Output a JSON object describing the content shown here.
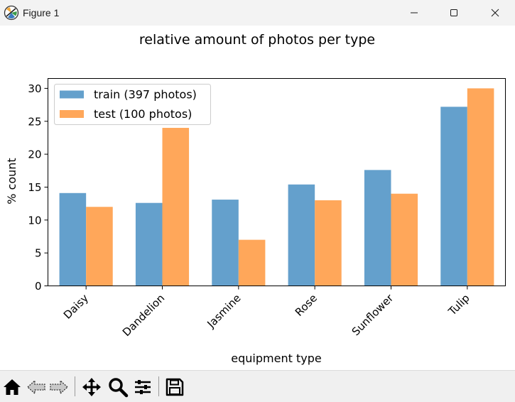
{
  "window": {
    "title": "Figure 1",
    "controls": [
      "minimize",
      "maximize",
      "close"
    ]
  },
  "toolbar": {
    "icons": [
      "home-icon",
      "back-icon",
      "forward-icon",
      "pan-icon",
      "zoom-icon",
      "configure-subplots-icon",
      "save-icon"
    ]
  },
  "chart_data": {
    "type": "bar",
    "title": "relative amount of photos per type",
    "xlabel": "equipment type",
    "ylabel": "% count",
    "categories": [
      "Daisy",
      "Dandelion",
      "Jasmine",
      "Rose",
      "Sunflower",
      "Tulip"
    ],
    "series": [
      {
        "name": "train (397 photos)",
        "color": "#64a0cc",
        "values": [
          14.1,
          12.6,
          13.1,
          15.4,
          17.6,
          27.2
        ]
      },
      {
        "name": "test (100 photos)",
        "color": "#ffa75a",
        "values": [
          12.0,
          24.0,
          7.0,
          13.0,
          14.0,
          30.0
        ]
      }
    ],
    "ylim": [
      0,
      31.5
    ],
    "yticks": [
      0,
      5,
      10,
      15,
      20,
      25,
      30
    ],
    "grid": false,
    "legend_position": "top-left",
    "xtick_rotation": -45
  }
}
